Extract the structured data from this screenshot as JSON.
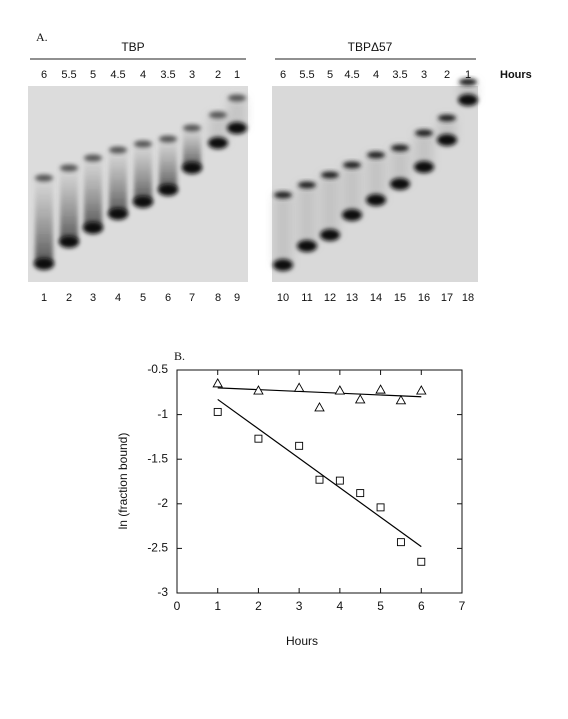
{
  "panel_a": {
    "label": "A.",
    "hours_label": "Hours",
    "gels": [
      {
        "title": "TBP",
        "hours": [
          "6",
          "5.5",
          "5",
          "4.5",
          "4",
          "3.5",
          "3",
          "2",
          "1"
        ],
        "lanes": [
          "1",
          "2",
          "3",
          "4",
          "5",
          "6",
          "7",
          "8",
          "9"
        ]
      },
      {
        "title": "TBPΔ57",
        "hours": [
          "6",
          "5.5",
          "5",
          "4.5",
          "4",
          "3.5",
          "3",
          "2",
          "1"
        ],
        "lanes": [
          "10",
          "11",
          "12",
          "13",
          "14",
          "15",
          "16",
          "17",
          "18"
        ]
      }
    ]
  },
  "chart_data": {
    "type": "scatter",
    "panel_label": "B.",
    "xlabel": "Hours",
    "ylabel": "ln (fraction bound)",
    "xlim": [
      0,
      7
    ],
    "xticks": [
      0,
      1,
      2,
      3,
      4,
      5,
      6,
      7
    ],
    "ylim": [
      -3,
      -0.5
    ],
    "yticks": [
      -3,
      -2.5,
      -2,
      -1.5,
      -1,
      -0.5
    ],
    "series": [
      {
        "marker": "triangle",
        "color": "#000000",
        "x": [
          1,
          2,
          3,
          3.5,
          4,
          4.5,
          5,
          5.5,
          6
        ],
        "values": [
          -0.65,
          -0.73,
          -0.7,
          -0.92,
          -0.73,
          -0.83,
          -0.72,
          -0.84,
          -0.73
        ]
      },
      {
        "marker": "square",
        "color": "#000000",
        "x": [
          1,
          2,
          3,
          3.5,
          4,
          4.5,
          5,
          5.5,
          6
        ],
        "values": [
          -0.97,
          -1.27,
          -1.35,
          -1.73,
          -1.74,
          -1.88,
          -2.04,
          -2.43,
          -2.65
        ]
      }
    ],
    "fit_lines": [
      {
        "color": "#000000",
        "x": [
          1,
          6
        ],
        "values": [
          -0.7,
          -0.8
        ]
      },
      {
        "color": "#000000",
        "x": [
          1,
          6
        ],
        "values": [
          -0.83,
          -2.48
        ]
      }
    ]
  }
}
